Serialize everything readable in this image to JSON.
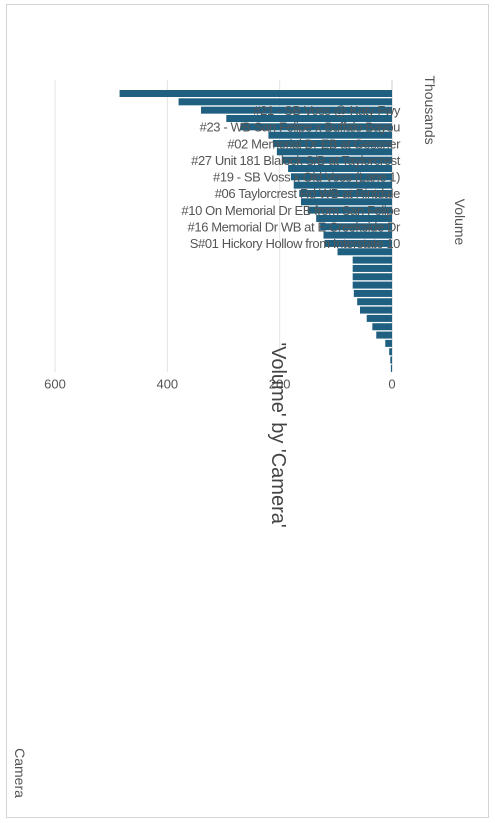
{
  "chart_data": {
    "type": "bar",
    "orientation": "rotated-90-clockwise",
    "title": "'Volume' by 'Camera'",
    "xlabel": "Camera",
    "ylabel": "Volume",
    "y_units": "Thousands",
    "ylim": [
      0,
      600
    ],
    "yticks": [
      0,
      200,
      400,
      600
    ],
    "grid": true,
    "bar_color": "#1f5f80",
    "tick_labels": [
      "#21 - SB Voss @ Katy Fwy",
      "#23 - WB San Felipe x Buffalo Bayou",
      "#02 Memorial Dr EB at Gessner",
      "#27 Unit 181 Blalock S/B at Taylorcrest",
      "#19 - SB Voss x Old Voss (Lane 1)",
      "#06 Taylorcrest Rd WB at Rintdale",
      "#10 On Memorial Dr EB from San Felipe",
      "#16 Memorial Dr WB at E Creekside Dr",
      "S#01 Hickory Hollow from Interstate 10"
    ],
    "tick_positions": [
      0,
      2,
      4,
      6,
      8,
      10,
      12,
      14,
      16
    ],
    "values": [
      485,
      380,
      340,
      295,
      270,
      220,
      212,
      205,
      195,
      185,
      180,
      175,
      165,
      162,
      150,
      135,
      128,
      122,
      120,
      97,
      70,
      70,
      70,
      70,
      68,
      62,
      57,
      45,
      35,
      28,
      12,
      5,
      3,
      2
    ]
  }
}
